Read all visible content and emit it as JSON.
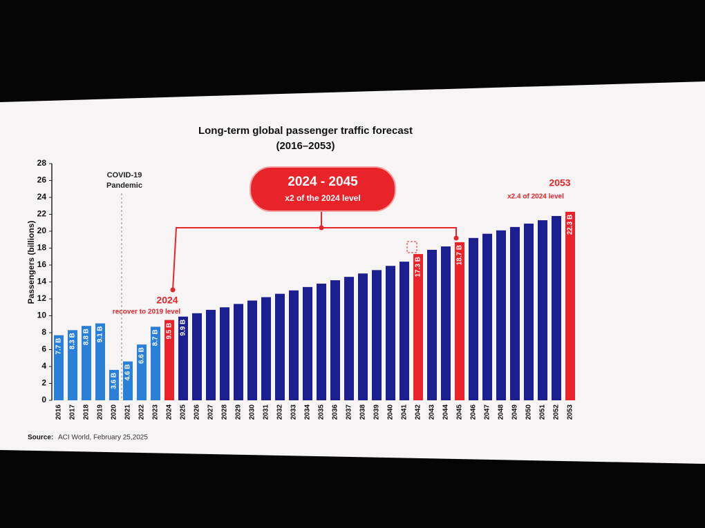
{
  "chart_data": {
    "type": "bar",
    "title": "Long-term global passenger traffic forecast",
    "subtitle": "(2016–2053)",
    "y_label": "Passengers (billions)",
    "categories": [
      "2016",
      "2017",
      "2018",
      "2019",
      "2020",
      "2021",
      "2022",
      "2023",
      "2024",
      "2025",
      "2026",
      "2027",
      "2028",
      "2029",
      "2030",
      "2031",
      "2032",
      "2033",
      "2034",
      "2035",
      "2036",
      "2037",
      "2038",
      "2039",
      "2040",
      "2041",
      "2042",
      "2043",
      "2044",
      "2045",
      "2046",
      "2047",
      "2048",
      "2049",
      "2050",
      "2051",
      "2052",
      "2053"
    ],
    "values": [
      7.7,
      8.3,
      8.8,
      9.1,
      3.6,
      4.6,
      6.6,
      8.7,
      9.5,
      9.9,
      10.3,
      10.7,
      11.0,
      11.4,
      11.8,
      12.2,
      12.6,
      13.0,
      13.4,
      13.8,
      14.2,
      14.6,
      15.0,
      15.4,
      15.9,
      16.4,
      17.3,
      17.8,
      18.2,
      18.7,
      19.2,
      19.7,
      20.1,
      20.5,
      20.9,
      21.3,
      21.8,
      22.3
    ],
    "value_labels": [
      "7.7 B",
      "8.3 B",
      "8.8 B",
      "9.1 B",
      "3.6 B",
      "4.6 B",
      "6.6 B",
      "8.7 B",
      "9.5 B",
      "9.9 B",
      null,
      null,
      null,
      null,
      null,
      null,
      null,
      null,
      null,
      null,
      null,
      null,
      null,
      null,
      null,
      null,
      "17.3 B",
      null,
      null,
      "18.7 B",
      null,
      null,
      null,
      null,
      null,
      null,
      null,
      "22.3 B"
    ],
    "colors": [
      "#2a7fd6",
      "#2a7fd6",
      "#2a7fd6",
      "#2a7fd6",
      "#2a7fd6",
      "#2a7fd6",
      "#2a7fd6",
      "#2a7fd6",
      "#e8232a",
      "#1c1f8f",
      "#1c1f8f",
      "#1c1f8f",
      "#1c1f8f",
      "#1c1f8f",
      "#1c1f8f",
      "#1c1f8f",
      "#1c1f8f",
      "#1c1f8f",
      "#1c1f8f",
      "#1c1f8f",
      "#1c1f8f",
      "#1c1f8f",
      "#1c1f8f",
      "#1c1f8f",
      "#1c1f8f",
      "#1c1f8f",
      "#e8232a",
      "#1c1f8f",
      "#1c1f8f",
      "#e8232a",
      "#1c1f8f",
      "#1c1f8f",
      "#1c1f8f",
      "#1c1f8f",
      "#1c1f8f",
      "#1c1f8f",
      "#1c1f8f",
      "#e8232a"
    ],
    "ylim": [
      0,
      28
    ],
    "yticks": [
      0,
      2,
      4,
      6,
      8,
      10,
      12,
      14,
      16,
      18,
      20,
      22,
      24,
      26,
      28
    ],
    "annotations": {
      "covid": [
        "COVID-19",
        "Pandemic"
      ],
      "y2024": "2024",
      "recover": "recover to 2019 level",
      "range": "2024 - 2045",
      "range_note": "x2 of the 2024 level",
      "y2053": "2053",
      "note_2053": "x2.4 of 2024 level"
    },
    "source_label": "Source:",
    "source": "ACI World, February 25,2025"
  }
}
